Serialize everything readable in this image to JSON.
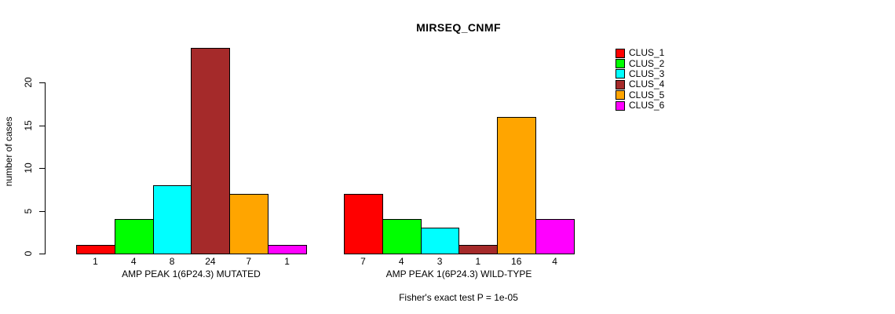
{
  "chart_data": {
    "type": "bar",
    "title": "MIRSEQ_CNMF",
    "ylabel": "number of cases",
    "xlabel": "",
    "ylim": [
      0,
      20
    ],
    "yticks": [
      0,
      5,
      10,
      15,
      20
    ],
    "grid": false,
    "legend_position": "right",
    "series_names": [
      "CLUS_1",
      "CLUS_2",
      "CLUS_3",
      "CLUS_4",
      "CLUS_5",
      "CLUS_6"
    ],
    "series_colors": [
      "#FF0000",
      "#00FF00",
      "#00FFFF",
      "#A52A2A",
      "#FFA500",
      "#FF00FF"
    ],
    "groups": [
      {
        "label": "AMP PEAK 1(6P24.3) MUTATED",
        "values": [
          1,
          4,
          8,
          24,
          7,
          1
        ]
      },
      {
        "label": "AMP PEAK 1(6P24.3) WILD-TYPE",
        "values": [
          7,
          4,
          3,
          1,
          16,
          4
        ]
      }
    ],
    "bar_value_labels_shown": true,
    "annotation": "Fisher's exact test P = 1e-05"
  }
}
